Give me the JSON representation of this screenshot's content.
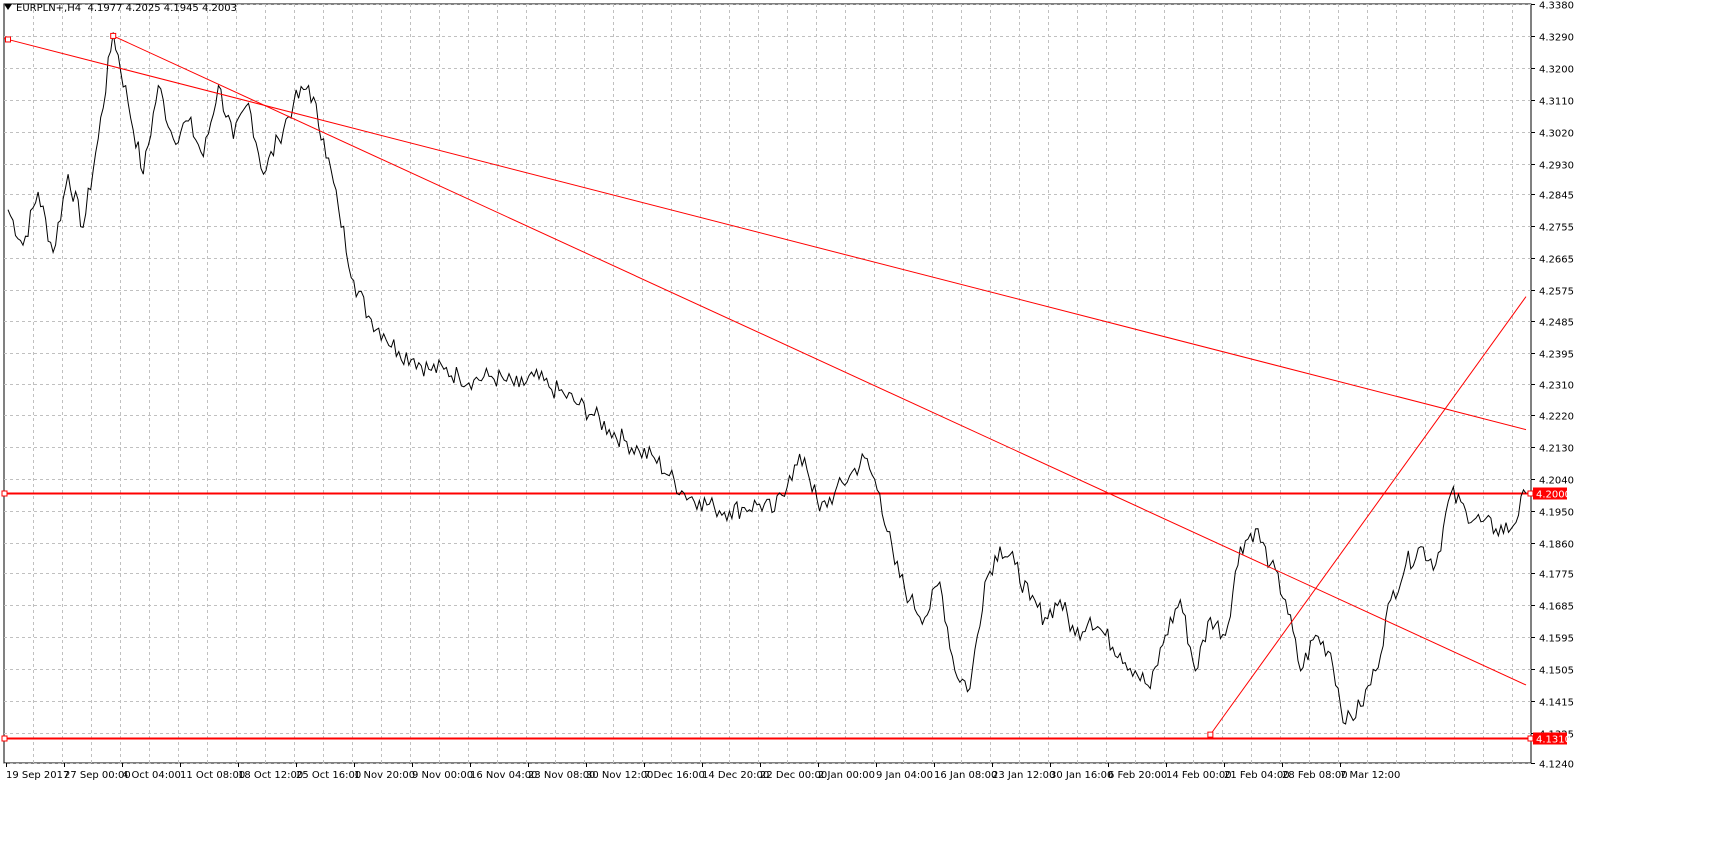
{
  "header": {
    "symbol": "EURPLN+,H4",
    "ohlc": "4.1977 4.2025 4.1945 4.2003"
  },
  "colors": {
    "background": "#ffffff",
    "price_line": "#000000",
    "grid": "#c0c0c0",
    "trendline": "#ff0000",
    "level_label_text": "#ffffff"
  },
  "chart_data": {
    "type": "line",
    "series": [
      {
        "values": [
          4.28,
          4.27,
          4.285,
          4.268,
          4.29,
          4.275,
          4.3,
          4.33,
          4.31,
          4.29,
          4.315,
          4.3,
          4.305,
          4.295,
          4.315,
          4.3,
          4.31,
          4.29,
          4.3,
          4.31,
          4.315,
          4.3,
          4.28,
          4.26,
          4.25,
          4.245,
          4.24,
          4.238,
          4.235,
          4.235,
          4.233,
          4.232,
          4.233,
          4.232,
          4.23,
          4.233,
          4.23,
          4.228,
          4.225,
          4.222,
          4.218,
          4.215,
          4.212,
          4.21,
          4.205,
          4.2,
          4.198,
          4.196,
          4.195,
          4.196,
          4.197,
          4.195,
          4.205,
          4.21,
          4.195,
          4.2,
          4.205,
          4.21,
          4.2,
          4.18,
          4.17,
          4.165,
          4.175,
          4.15,
          4.145,
          4.175,
          4.185,
          4.18,
          4.17,
          4.165,
          4.17,
          4.16,
          4.165,
          4.16,
          4.155,
          4.15,
          4.145,
          4.16,
          4.17,
          4.15,
          4.165,
          4.16,
          4.185,
          4.19,
          4.18,
          4.17,
          4.15,
          4.16,
          4.155,
          4.135,
          4.14,
          4.15,
          4.17,
          4.18,
          4.185,
          4.18,
          4.2,
          4.195,
          4.192,
          4.19,
          4.19,
          4.2
        ],
        "start": "19 Sep 2017",
        "timeframe": "H4"
      }
    ],
    "x_tick_labels": [
      "19 Sep 2017",
      "27 Sep 00:00",
      "4 Oct 04:00",
      "11 Oct 08:00",
      "18 Oct 12:00",
      "25 Oct 16:00",
      "1 Nov 20:00",
      "9 Nov 00:00",
      "16 Nov 04:00",
      "23 Nov 08:00",
      "30 Nov 12:00",
      "7 Dec 16:00",
      "14 Dec 20:00",
      "22 Dec 00:00",
      "2 Jan 00:00",
      "9 Jan 04:00",
      "16 Jan 08:00",
      "23 Jan 12:00",
      "30 Jan 16:00",
      "6 Feb 20:00",
      "14 Feb 00:00",
      "21 Feb 04:00",
      "28 Feb 08:00",
      "7 Mar 12:00"
    ],
    "y_tick_labels": [
      "4.3380",
      "4.3290",
      "4.3200",
      "4.3110",
      "4.3020",
      "4.2930",
      "4.2845",
      "4.2755",
      "4.2665",
      "4.2575",
      "4.2485",
      "4.2395",
      "4.2310",
      "4.2220",
      "4.2130",
      "4.2040",
      "4.1950",
      "4.1860",
      "4.1775",
      "4.1685",
      "4.1595",
      "4.1505",
      "4.1415",
      "4.1325",
      "4.1240"
    ],
    "ylim": [
      4.124,
      4.338
    ],
    "grid": true,
    "horizontal_levels": [
      {
        "value": 4.2,
        "label": "4.2000"
      },
      {
        "value": 4.131,
        "label": "4.1310"
      }
    ],
    "trendlines": [
      {
        "from": {
          "bar": 0,
          "price": 4.328
        },
        "to": {
          "bar": 101,
          "price": 4.218
        }
      },
      {
        "from": {
          "bar": 7,
          "price": 4.329
        },
        "to": {
          "bar": 101,
          "price": 4.146
        }
      },
      {
        "from": {
          "bar": 80,
          "price": 4.132
        },
        "to": {
          "bar": 101,
          "price": 4.2555
        }
      }
    ]
  }
}
